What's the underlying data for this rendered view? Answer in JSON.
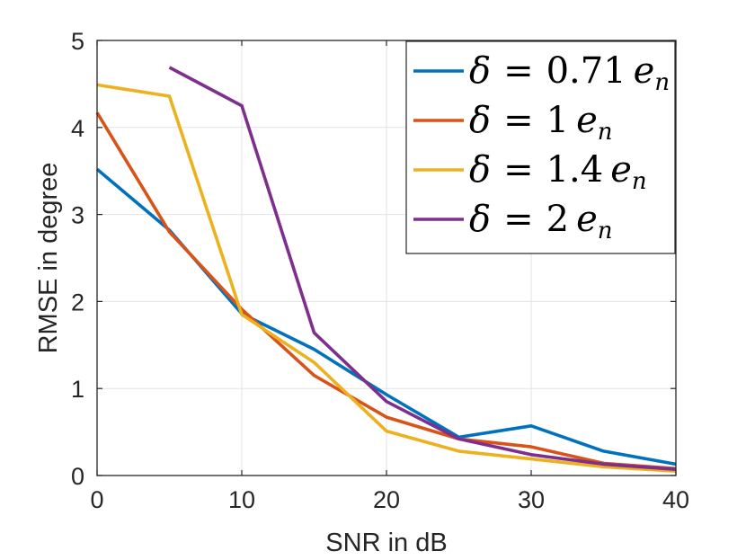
{
  "chart_data": {
    "type": "line",
    "title": "",
    "xlabel": "SNR in dB",
    "ylabel": "RMSE in degree",
    "xlim": [
      0,
      40
    ],
    "ylim": [
      0,
      5
    ],
    "xticks": [
      0,
      10,
      20,
      30,
      40
    ],
    "yticks": [
      0,
      1,
      2,
      3,
      4,
      5
    ],
    "xtick_labels": [
      "0",
      "10",
      "20",
      "30",
      "40"
    ],
    "ytick_labels": [
      "0",
      "1",
      "2",
      "3",
      "4",
      "5"
    ],
    "grid": true,
    "legend_position": "top-right",
    "series": [
      {
        "name": "δ = 0.71 e_n",
        "legend": {
          "symbol": "δ",
          "eq": "=",
          "coef": "0.71",
          "var": "e",
          "sub": "n"
        },
        "color": "#0072BD",
        "x": [
          0,
          5,
          10,
          15,
          20,
          25,
          30,
          35,
          40
        ],
        "values": [
          3.52,
          2.82,
          1.86,
          1.45,
          0.93,
          0.44,
          0.57,
          0.28,
          0.13
        ]
      },
      {
        "name": "δ = 1 e_n",
        "legend": {
          "symbol": "δ",
          "eq": "=",
          "coef": "1",
          "var": "e",
          "sub": "n"
        },
        "color": "#D95319",
        "x": [
          0,
          5,
          10,
          15,
          20,
          25,
          30,
          35,
          40
        ],
        "values": [
          4.17,
          2.8,
          1.91,
          1.15,
          0.67,
          0.42,
          0.33,
          0.14,
          0.08
        ]
      },
      {
        "name": "δ = 1.4 e_n",
        "legend": {
          "symbol": "δ",
          "eq": "=",
          "coef": "1.4",
          "var": "e",
          "sub": "n"
        },
        "color": "#EDB120",
        "x": [
          0,
          5,
          10,
          15,
          20,
          25,
          30,
          35,
          40
        ],
        "values": [
          4.49,
          4.36,
          1.85,
          1.3,
          0.51,
          0.28,
          0.19,
          0.1,
          0.05
        ]
      },
      {
        "name": "δ = 2 e_n",
        "legend": {
          "symbol": "δ",
          "eq": "=",
          "coef": "2",
          "var": "e",
          "sub": "n"
        },
        "color": "#7E2F8E",
        "x": [
          5,
          10,
          15,
          20,
          25,
          30,
          35,
          40
        ],
        "values": [
          4.69,
          4.25,
          1.64,
          0.85,
          0.42,
          0.24,
          0.13,
          0.07
        ]
      }
    ]
  }
}
